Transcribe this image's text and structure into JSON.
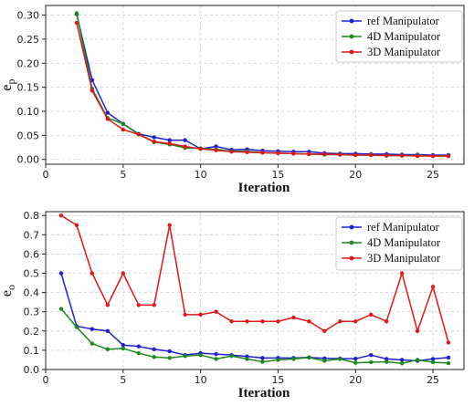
{
  "chart_data": [
    {
      "type": "line",
      "xlabel": "Iteration",
      "ylabel": "e",
      "ylabel_sub": "p",
      "xlim": [
        0,
        27
      ],
      "ylim": [
        -0.01,
        0.32
      ],
      "xticks": [
        0,
        5,
        10,
        15,
        20,
        25
      ],
      "yticks": [
        0.0,
        0.05,
        0.1,
        0.15,
        0.2,
        0.25,
        0.3
      ],
      "ytick_decimals": 2,
      "grid": true,
      "legend_position": "top-right",
      "x": [
        2,
        3,
        4,
        5,
        6,
        7,
        8,
        9,
        10,
        11,
        12,
        13,
        14,
        15,
        16,
        17,
        18,
        19,
        20,
        21,
        22,
        23,
        24,
        25,
        26
      ],
      "series": [
        {
          "name": "ref Manipulator",
          "color": "#1f1fd0",
          "values": [
            0.302,
            0.165,
            0.097,
            0.074,
            0.053,
            0.046,
            0.04,
            0.04,
            0.022,
            0.027,
            0.02,
            0.021,
            0.018,
            0.017,
            0.016,
            0.016,
            0.013,
            0.012,
            0.012,
            0.011,
            0.011,
            0.01,
            0.01,
            0.009,
            0.009
          ]
        },
        {
          "name": "4D Manipulator",
          "color": "#1a8a1a",
          "values": [
            0.304,
            0.147,
            0.086,
            0.074,
            0.052,
            0.036,
            0.031,
            0.024,
            0.023,
            0.021,
            0.017,
            0.017,
            0.014,
            0.013,
            0.012,
            0.011,
            0.01,
            0.01,
            0.009,
            0.009,
            0.008,
            0.008,
            0.008,
            0.007,
            0.007
          ]
        },
        {
          "name": "3D Manipulator",
          "color": "#e01818",
          "values": [
            0.284,
            0.143,
            0.084,
            0.062,
            0.052,
            0.037,
            0.033,
            0.027,
            0.022,
            0.019,
            0.016,
            0.015,
            0.014,
            0.013,
            0.012,
            0.011,
            0.011,
            0.01,
            0.009,
            0.009,
            0.008,
            0.008,
            0.007,
            0.007,
            0.007
          ]
        }
      ]
    },
    {
      "type": "line",
      "xlabel": "Iteration",
      "ylabel": "e",
      "ylabel_sub": "o",
      "xlim": [
        0,
        27
      ],
      "ylim": [
        0,
        0.82
      ],
      "xticks": [
        0,
        5,
        10,
        15,
        20,
        25
      ],
      "yticks": [
        0.0,
        0.1,
        0.2,
        0.3,
        0.4,
        0.5,
        0.6,
        0.7,
        0.8
      ],
      "ytick_decimals": 1,
      "grid": true,
      "legend_position": "top-right",
      "x": [
        1,
        2,
        3,
        4,
        5,
        6,
        7,
        8,
        9,
        10,
        11,
        12,
        13,
        14,
        15,
        16,
        17,
        18,
        19,
        20,
        21,
        22,
        23,
        24,
        25,
        26
      ],
      "series": [
        {
          "name": "ref Manipulator",
          "color": "#1f1fd0",
          "values": [
            0.5,
            0.225,
            0.21,
            0.2,
            0.127,
            0.12,
            0.105,
            0.095,
            0.075,
            0.085,
            0.08,
            0.075,
            0.068,
            0.06,
            0.06,
            0.06,
            0.063,
            0.058,
            0.057,
            0.056,
            0.075,
            0.055,
            0.05,
            0.045,
            0.055,
            0.062
          ]
        },
        {
          "name": "4D Manipulator",
          "color": "#1a8a1a",
          "values": [
            0.315,
            0.22,
            0.135,
            0.105,
            0.11,
            0.085,
            0.065,
            0.06,
            0.07,
            0.075,
            0.055,
            0.07,
            0.055,
            0.04,
            0.05,
            0.055,
            0.062,
            0.045,
            0.055,
            0.035,
            0.038,
            0.04,
            0.032,
            0.05,
            0.038,
            0.033
          ]
        },
        {
          "name": "3D Manipulator",
          "color": "#e01818",
          "values": [
            0.8,
            0.75,
            0.5,
            0.335,
            0.5,
            0.335,
            0.335,
            0.75,
            0.285,
            0.285,
            0.3,
            0.25,
            0.25,
            0.25,
            0.25,
            0.27,
            0.25,
            0.2,
            0.25,
            0.25,
            0.285,
            0.25,
            0.5,
            0.2,
            0.43,
            0.14
          ]
        }
      ]
    }
  ]
}
